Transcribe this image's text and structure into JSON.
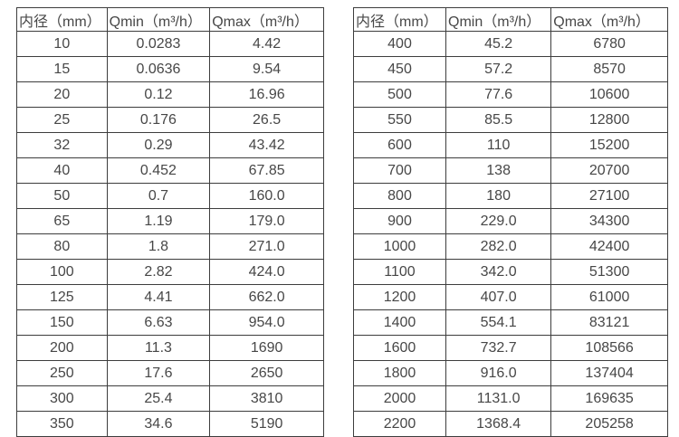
{
  "colors": {
    "background": "#ffffff",
    "border": "#3d3d3d",
    "text": "#474747"
  },
  "tables": [
    {
      "name": "flow-rates-small-diameters",
      "headers": [
        "内径（mm）",
        "Qmin（m³/h）",
        "Qmax（m³/h）"
      ],
      "rows": [
        [
          "10",
          "0.0283",
          "4.42"
        ],
        [
          "15",
          "0.0636",
          "9.54"
        ],
        [
          "20",
          "0.12",
          "16.96"
        ],
        [
          "25",
          "0.176",
          "26.5"
        ],
        [
          "32",
          "0.29",
          "43.42"
        ],
        [
          "40",
          "0.452",
          "67.85"
        ],
        [
          "50",
          "0.7",
          "160.0"
        ],
        [
          "65",
          "1.19",
          "179.0"
        ],
        [
          "80",
          "1.8",
          "271.0"
        ],
        [
          "100",
          "2.82",
          "424.0"
        ],
        [
          "125",
          "4.41",
          "662.0"
        ],
        [
          "150",
          "6.63",
          "954.0"
        ],
        [
          "200",
          "11.3",
          "1690"
        ],
        [
          "250",
          "17.6",
          "2650"
        ],
        [
          "300",
          "25.4",
          "3810"
        ],
        [
          "350",
          "34.6",
          "5190"
        ]
      ]
    },
    {
      "name": "flow-rates-large-diameters",
      "headers": [
        "内径（mm）",
        "Qmin（m³/h）",
        "Qmax（m³/h）"
      ],
      "rows": [
        [
          "400",
          "45.2",
          "6780"
        ],
        [
          "450",
          "57.2",
          "8570"
        ],
        [
          "500",
          "77.6",
          "10600"
        ],
        [
          "550",
          "85.5",
          "12800"
        ],
        [
          "600",
          "110",
          "15200"
        ],
        [
          "700",
          "138",
          "20700"
        ],
        [
          "800",
          "180",
          "27100"
        ],
        [
          "900",
          "229.0",
          "34300"
        ],
        [
          "1000",
          "282.0",
          "42400"
        ],
        [
          "1100",
          "342.0",
          "51300"
        ],
        [
          "1200",
          "407.0",
          "61000"
        ],
        [
          "1400",
          "554.1",
          "83121"
        ],
        [
          "1600",
          "732.7",
          "108566"
        ],
        [
          "1800",
          "916.0",
          "137404"
        ],
        [
          "2000",
          "1131.0",
          "169635"
        ],
        [
          "2200",
          "1368.4",
          "205258"
        ]
      ]
    }
  ]
}
